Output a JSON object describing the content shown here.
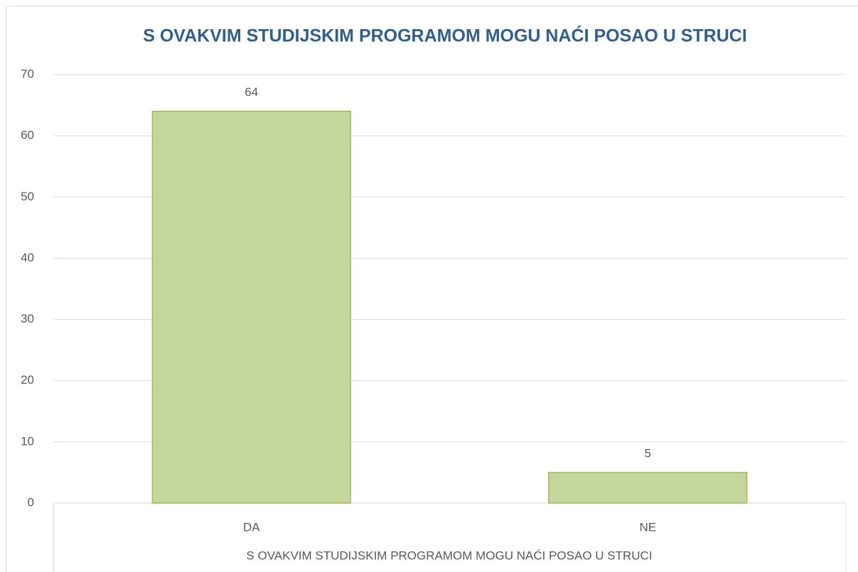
{
  "chart_data": {
    "type": "bar",
    "title": "S OVAKVIM STUDIJSKIM PROGRAMOM MOGU NAĆI POSAO U STRUCI",
    "x_label": "S OVAKVIM STUDIJSKIM PROGRAMOM MOGU NAĆI POSAO U STRUCI",
    "categories": [
      "DA",
      "NE"
    ],
    "values": [
      64,
      5
    ],
    "color": "#c3d69b",
    "edge_color": "#9bbb59",
    "ylim": [
      0,
      70
    ],
    "yticks": [
      0,
      10,
      20,
      30,
      40,
      50,
      60,
      70
    ],
    "grid": true
  }
}
